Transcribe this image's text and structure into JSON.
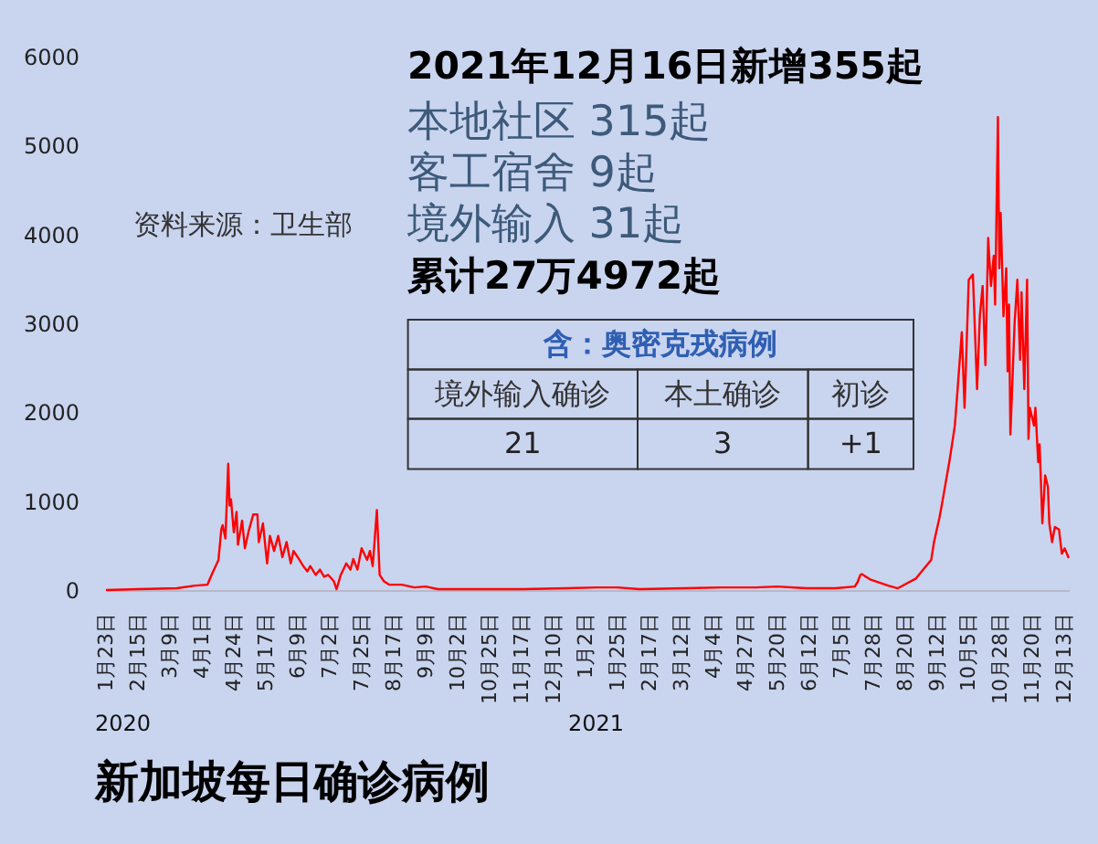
{
  "chart_data": {
    "type": "line",
    "title": "新加坡每日确诊病例",
    "color": "#ff0000",
    "x": [
      "2020-01-23",
      "2020-02-15",
      "2020-03-14",
      "2020-03-27",
      "2020-04-05",
      "2020-04-08",
      "2020-04-13",
      "2020-04-15",
      "2020-04-16",
      "2020-04-18",
      "2020-04-20",
      "2020-04-21",
      "2020-04-22",
      "2020-04-24",
      "2020-04-26",
      "2020-04-27",
      "2020-04-30",
      "2020-05-02",
      "2020-05-05",
      "2020-05-08",
      "2020-05-11",
      "2020-05-12",
      "2020-05-15",
      "2020-05-18",
      "2020-05-20",
      "2020-05-23",
      "2020-05-26",
      "2020-05-29",
      "2020-06-01",
      "2020-06-04",
      "2020-06-06",
      "2020-06-09",
      "2020-06-13",
      "2020-06-16",
      "2020-06-18",
      "2020-06-22",
      "2020-06-25",
      "2020-06-28",
      "2020-07-01",
      "2020-07-05",
      "2020-07-07",
      "2020-07-10",
      "2020-07-14",
      "2020-07-17",
      "2020-07-19",
      "2020-07-22",
      "2020-07-25",
      "2020-07-29",
      "2020-07-31",
      "2020-08-02",
      "2020-08-05",
      "2020-08-07",
      "2020-08-10",
      "2020-08-14",
      "2020-08-23",
      "2020-09-01",
      "2020-09-09",
      "2020-09-18",
      "2020-10-09",
      "2020-11-18",
      "2020-12-20",
      "2021-01-10",
      "2021-01-25",
      "2021-02-10",
      "2021-03-15",
      "2021-04-10",
      "2021-05-05",
      "2021-05-20",
      "2021-06-10",
      "2021-07-01",
      "2021-07-15",
      "2021-07-17",
      "2021-07-19",
      "2021-07-20",
      "2021-07-26",
      "2021-08-08",
      "2021-08-15",
      "2021-08-22",
      "2021-08-28",
      "2021-09-08",
      "2021-09-10",
      "2021-09-14",
      "2021-09-16",
      "2021-09-21",
      "2021-09-23",
      "2021-09-25",
      "2021-09-27",
      "2021-09-30",
      "2021-10-02",
      "2021-10-05",
      "2021-10-08",
      "2021-10-11",
      "2021-10-13",
      "2021-10-15",
      "2021-10-17",
      "2021-10-19",
      "2021-10-21",
      "2021-10-23",
      "2021-10-24",
      "2021-10-26",
      "2021-10-27",
      "2021-10-28",
      "2021-10-30",
      "2021-11-01",
      "2021-11-02",
      "2021-11-03",
      "2021-11-04",
      "2021-11-07",
      "2021-11-09",
      "2021-11-11",
      "2021-11-12",
      "2021-11-14",
      "2021-11-16",
      "2021-11-17",
      "2021-11-18",
      "2021-11-21",
      "2021-11-22",
      "2021-11-24",
      "2021-11-25",
      "2021-11-27",
      "2021-11-29",
      "2021-12-01",
      "2021-12-02",
      "2021-12-04",
      "2021-12-06",
      "2021-12-09",
      "2021-12-11",
      "2021-12-13",
      "2021-12-16"
    ],
    "values": [
      0,
      10,
      20,
      50,
      60,
      170,
      340,
      680,
      730,
      580,
      1420,
      950,
      1020,
      650,
      880,
      510,
      780,
      470,
      680,
      850,
      850,
      540,
      750,
      300,
      610,
      440,
      610,
      370,
      540,
      300,
      440,
      370,
      270,
      210,
      270,
      170,
      230,
      150,
      170,
      100,
      10,
      170,
      300,
      230,
      350,
      230,
      470,
      340,
      440,
      270,
      900,
      170,
      100,
      60,
      60,
      30,
      40,
      10,
      10,
      10,
      20,
      30,
      30,
      10,
      20,
      30,
      30,
      40,
      20,
      20,
      40,
      90,
      170,
      180,
      120,
      50,
      20,
      80,
      130,
      340,
      540,
      820,
      990,
      1440,
      1640,
      1850,
      2260,
      2900,
      2050,
      3490,
      3550,
      2260,
      3080,
      3420,
      2530,
      3960,
      3420,
      3760,
      3210,
      5320,
      3620,
      4240,
      3080,
      3620,
      2460,
      3210,
      1750,
      3000,
      3490,
      2590,
      3350,
      2260,
      3490,
      1700,
      2050,
      1850,
      2050,
      1440,
      1640,
      750,
      1290,
      1160,
      750,
      540,
      710,
      680,
      410,
      470,
      360
    ],
    "xlim": [
      "2020-01-23",
      "2021-12-16"
    ],
    "xticks": [
      {
        "value": "2020-01-23",
        "label": "1月23日"
      },
      {
        "value": "2020-02-15",
        "label": "2月15日"
      },
      {
        "value": "2020-03-09",
        "label": "3月9日"
      },
      {
        "value": "2020-04-01",
        "label": "4月1日"
      },
      {
        "value": "2020-04-24",
        "label": "4月24日"
      },
      {
        "value": "2020-05-17",
        "label": "5月17日"
      },
      {
        "value": "2020-06-09",
        "label": "6月9日"
      },
      {
        "value": "2020-07-02",
        "label": "7月2日"
      },
      {
        "value": "2020-07-25",
        "label": "7月25日"
      },
      {
        "value": "2020-08-17",
        "label": "8月17日"
      },
      {
        "value": "2020-09-09",
        "label": "9月9日"
      },
      {
        "value": "2020-10-02",
        "label": "10月2日"
      },
      {
        "value": "2020-10-25",
        "label": "10月25日"
      },
      {
        "value": "2020-11-17",
        "label": "11月17日"
      },
      {
        "value": "2020-12-10",
        "label": "12月10日"
      },
      {
        "value": "2021-01-02",
        "label": "1月2日"
      },
      {
        "value": "2021-01-25",
        "label": "1月25日"
      },
      {
        "value": "2021-02-17",
        "label": "2月17日"
      },
      {
        "value": "2021-03-12",
        "label": "3月12日"
      },
      {
        "value": "2021-04-04",
        "label": "4月4日"
      },
      {
        "value": "2021-04-27",
        "label": "4月27日"
      },
      {
        "value": "2021-05-20",
        "label": "5月20日"
      },
      {
        "value": "2021-06-12",
        "label": "6月12日"
      },
      {
        "value": "2021-07-05",
        "label": "7月5日"
      },
      {
        "value": "2021-07-28",
        "label": "7月28日"
      },
      {
        "value": "2021-08-20",
        "label": "8月20日"
      },
      {
        "value": "2021-09-12",
        "label": "9月12日"
      },
      {
        "value": "2021-10-05",
        "label": "10月5日"
      },
      {
        "value": "2021-10-28",
        "label": "10月28日"
      },
      {
        "value": "2021-11-20",
        "label": "11月20日"
      },
      {
        "value": "2021-12-13",
        "label": "12月13日"
      }
    ],
    "ylim": [
      0,
      6000
    ],
    "yticks": [
      0,
      1000,
      2000,
      3000,
      4000,
      5000,
      6000
    ],
    "grid": false,
    "annotations": [
      "2021年12月16日新增355起",
      "本地社区 315起",
      "客工宿舍 9起",
      "境外输入 31起",
      "累计27万4972起",
      "含：奥密克戎病例",
      "境外输入确诊",
      "本土确诊",
      "初诊",
      "21",
      "3",
      "+1",
      "资料来源：卫生部",
      "2020",
      "2021"
    ]
  }
}
